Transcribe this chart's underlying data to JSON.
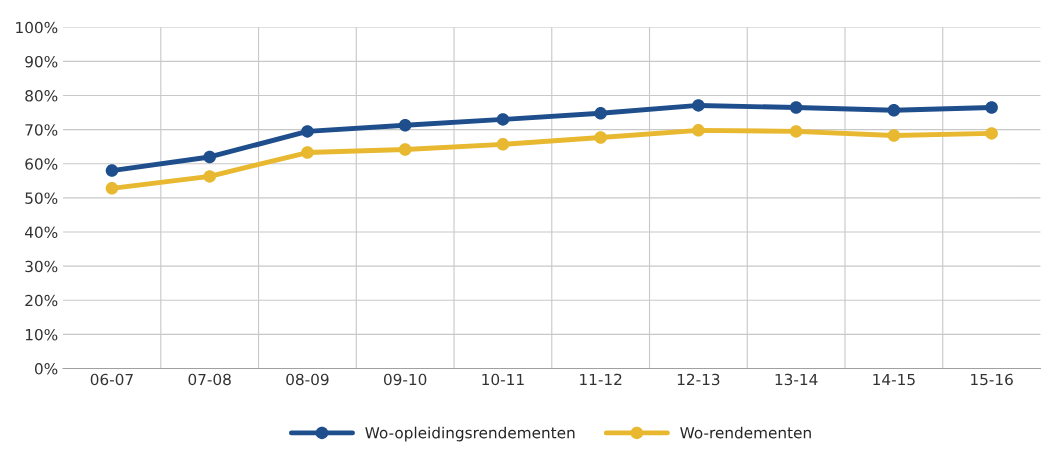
{
  "chart_data": {
    "type": "line",
    "categories": [
      "06-07",
      "07-08",
      "08-09",
      "09-10",
      "10-11",
      "11-12",
      "12-13",
      "13-14",
      "14-15",
      "15-16"
    ],
    "series": [
      {
        "name": "Wo-opleidingsrendementen",
        "color": "#1f4e8c",
        "values": [
          58,
          62,
          69.5,
          71.3,
          73,
          74.8,
          77.1,
          76.5,
          75.7,
          76.5
        ]
      },
      {
        "name": "Wo-rendementen",
        "color": "#e8b830",
        "values": [
          52.8,
          56.3,
          63.3,
          64.2,
          65.7,
          67.7,
          69.8,
          69.5,
          68.3,
          68.9
        ]
      }
    ],
    "ylim": [
      0,
      100
    ],
    "yticks": [
      {
        "value": 0,
        "label": "0%"
      },
      {
        "value": 10,
        "label": "10%"
      },
      {
        "value": 20,
        "label": "20%"
      },
      {
        "value": 30,
        "label": "30%"
      },
      {
        "value": 40,
        "label": "40%"
      },
      {
        "value": 50,
        "label": "50%"
      },
      {
        "value": 60,
        "label": "60%"
      },
      {
        "value": 70,
        "label": "70%"
      },
      {
        "value": 80,
        "label": "80%"
      },
      {
        "value": 90,
        "label": "90%"
      },
      {
        "value": 100,
        "label": "100%"
      }
    ],
    "grid": true,
    "legend": "bottom",
    "marker": "circle",
    "line_style": "solid"
  }
}
